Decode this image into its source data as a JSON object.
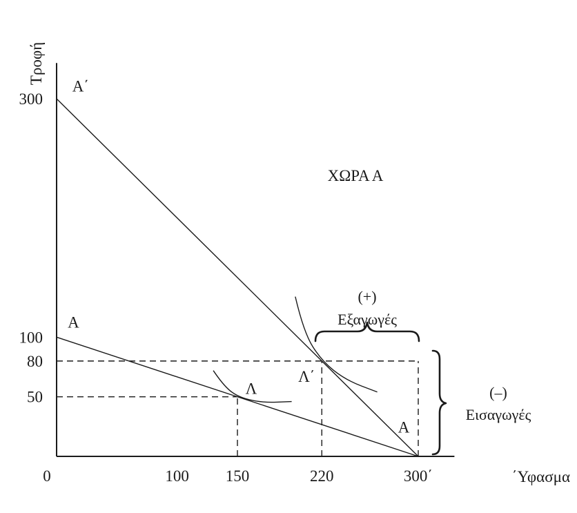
{
  "chart_data": {
    "type": "line",
    "title": "",
    "country_label": "ΧΩΡΑ Α",
    "xlabel": "΄Υφασμα",
    "ylabel": "Τροφή",
    "xlim": [
      0,
      330
    ],
    "ylim": [
      0,
      330
    ],
    "x_tick_labels": [
      {
        "value": 0,
        "label": "0"
      },
      {
        "value": 100,
        "label": "100"
      },
      {
        "value": 150,
        "label": "150"
      },
      {
        "value": 220,
        "label": "220"
      },
      {
        "value": 300,
        "label": "300΄"
      }
    ],
    "y_tick_labels": [
      {
        "value": 300,
        "label": "300"
      },
      {
        "value": 100,
        "label": "100"
      },
      {
        "value": 80,
        "label": "80"
      },
      {
        "value": 50,
        "label": "50"
      }
    ],
    "series": [
      {
        "key": "aa",
        "points": [
          [
            0,
            100
          ],
          [
            300,
            0
          ]
        ]
      },
      {
        "key": "aa_prime",
        "points": [
          [
            0,
            300
          ],
          [
            300,
            0
          ]
        ]
      }
    ],
    "line_labels": [
      {
        "text": "Α",
        "at": [
          14,
          108
        ]
      },
      {
        "text": "Α΄",
        "at": [
          20,
          306
        ]
      },
      {
        "text": "Α",
        "at": [
          288,
          20
        ]
      }
    ],
    "indifference_curves": [
      {
        "points": [
          [
            130,
            72
          ],
          [
            138,
            60
          ],
          [
            150,
            50
          ],
          [
            170,
            45
          ],
          [
            195,
            46
          ]
        ]
      },
      {
        "points": [
          [
            198,
            134
          ],
          [
            205,
            104
          ],
          [
            220,
            80
          ],
          [
            240,
            64
          ],
          [
            266,
            54
          ]
        ]
      }
    ],
    "points": [
      {
        "label": "Λ",
        "x": 150,
        "y": 50
      },
      {
        "label": "Λ΄",
        "x": 220,
        "y": 80
      }
    ],
    "guides": [
      {
        "from": [
          0,
          80
        ],
        "to": [
          300,
          80
        ]
      },
      {
        "from": [
          0,
          50
        ],
        "to": [
          150,
          50
        ]
      },
      {
        "from": [
          150,
          0
        ],
        "to": [
          150,
          50
        ]
      },
      {
        "from": [
          220,
          0
        ],
        "to": [
          220,
          80
        ]
      },
      {
        "from": [
          300,
          0
        ],
        "to": [
          300,
          80
        ]
      }
    ],
    "annotations": {
      "exports_sign": "(+)",
      "exports": "Εξαγωγές",
      "imports_sign": "(–)",
      "imports": "Εισαγωγές"
    }
  }
}
